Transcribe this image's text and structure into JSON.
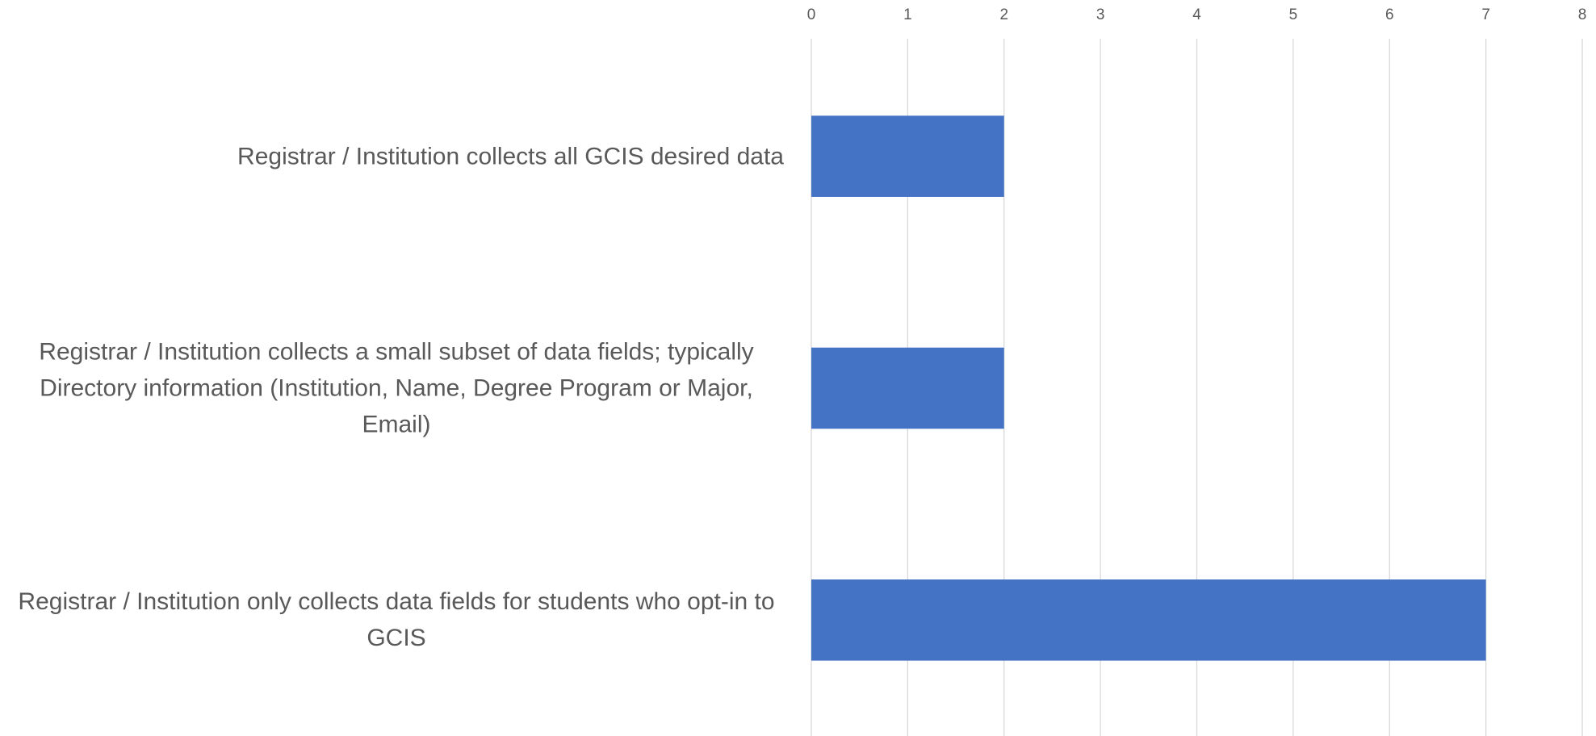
{
  "chart_data": {
    "type": "bar",
    "orientation": "horizontal",
    "categories": [
      "Registrar / Institution collects all GCIS desired data",
      "Registrar / Institution collects a small subset of data fields; typically Directory information (Institution, Name, Degree Program or Major, Email)",
      "Registrar / Institution only collects data fields for students who opt-in to GCIS"
    ],
    "values": [
      2,
      2,
      7
    ],
    "color": "#4472c4",
    "xlim": [
      0,
      8
    ],
    "xticks": [
      0,
      1,
      2,
      3,
      4,
      5,
      6,
      7,
      8
    ],
    "grid": true
  }
}
